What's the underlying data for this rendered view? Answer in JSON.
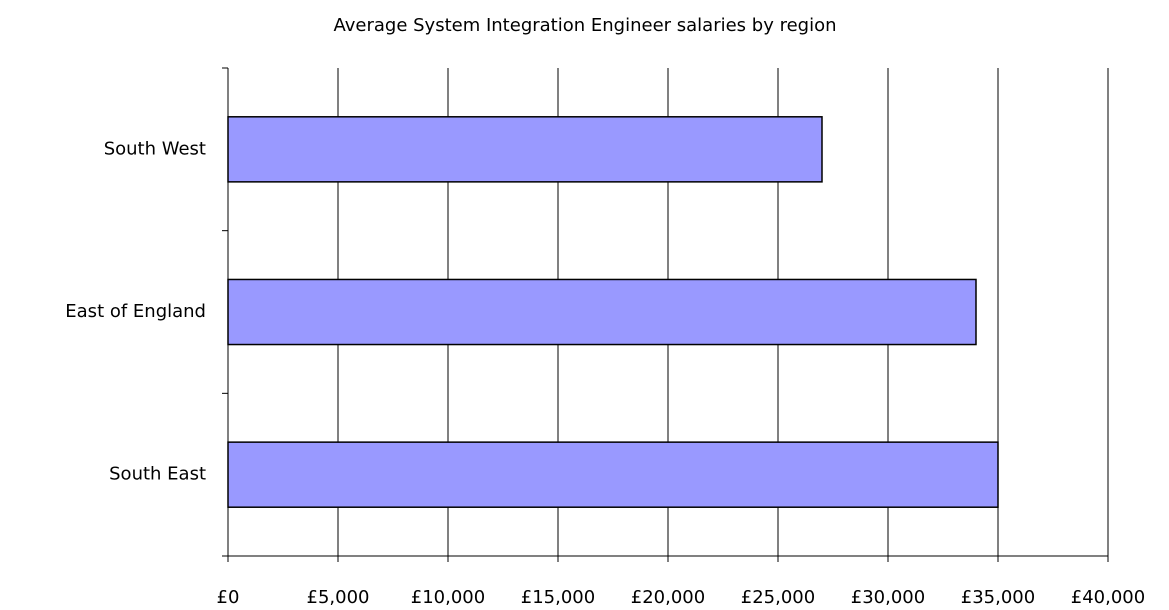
{
  "chart_data": {
    "type": "bar",
    "orientation": "horizontal",
    "title": "Average System Integration Engineer salaries by region",
    "categories": [
      "South West",
      "East of England",
      "South East"
    ],
    "values": [
      27000,
      34000,
      35000
    ],
    "color": "#9999ff",
    "xlim": [
      0,
      40000
    ],
    "xticks": [
      {
        "value": 0,
        "label": "£0"
      },
      {
        "value": 5000,
        "label": "£5,000"
      },
      {
        "value": 10000,
        "label": "£10,000"
      },
      {
        "value": 15000,
        "label": "£15,000"
      },
      {
        "value": 20000,
        "label": "£20,000"
      },
      {
        "value": 25000,
        "label": "£25,000"
      },
      {
        "value": 30000,
        "label": "£30,000"
      },
      {
        "value": 35000,
        "label": "£35,000"
      },
      {
        "value": 40000,
        "label": "£40,000"
      }
    ],
    "grid": true
  }
}
